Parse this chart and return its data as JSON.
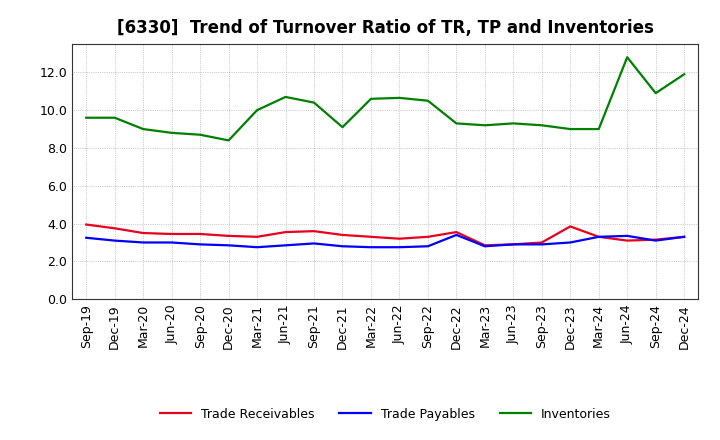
{
  "title": "[6330]  Trend of Turnover Ratio of TR, TP and Inventories",
  "labels": [
    "Sep-19",
    "Dec-19",
    "Mar-20",
    "Jun-20",
    "Sep-20",
    "Dec-20",
    "Mar-21",
    "Jun-21",
    "Sep-21",
    "Dec-21",
    "Mar-22",
    "Jun-22",
    "Sep-22",
    "Dec-22",
    "Mar-23",
    "Jun-23",
    "Sep-23",
    "Dec-23",
    "Mar-24",
    "Jun-24",
    "Sep-24",
    "Dec-24"
  ],
  "trade_receivables": [
    3.95,
    3.75,
    3.5,
    3.45,
    3.45,
    3.35,
    3.3,
    3.55,
    3.6,
    3.4,
    3.3,
    3.2,
    3.3,
    3.55,
    2.85,
    2.9,
    3.0,
    3.85,
    3.3,
    3.1,
    3.15,
    3.3
  ],
  "trade_payables": [
    3.25,
    3.1,
    3.0,
    3.0,
    2.9,
    2.85,
    2.75,
    2.85,
    2.95,
    2.8,
    2.75,
    2.75,
    2.8,
    3.4,
    2.8,
    2.9,
    2.9,
    3.0,
    3.3,
    3.35,
    3.1,
    3.3
  ],
  "inventories": [
    9.6,
    9.6,
    9.0,
    8.8,
    8.7,
    8.4,
    10.0,
    10.7,
    10.4,
    9.1,
    10.6,
    10.65,
    10.5,
    9.3,
    9.2,
    9.3,
    9.2,
    9.0,
    9.0,
    12.8,
    10.9,
    11.9
  ],
  "ylim": [
    0.0,
    13.5
  ],
  "yticks": [
    0.0,
    2.0,
    4.0,
    6.0,
    8.0,
    10.0,
    12.0
  ],
  "color_tr": "#e8001c",
  "color_tp": "#0000ff",
  "color_inv": "#008000",
  "legend_labels": [
    "Trade Receivables",
    "Trade Payables",
    "Inventories"
  ],
  "background_color": "#ffffff",
  "plot_bg_color": "#ffffff",
  "grid_color": "#888888",
  "title_fontsize": 12,
  "tick_fontsize": 9,
  "legend_fontsize": 9,
  "linewidth": 1.6
}
